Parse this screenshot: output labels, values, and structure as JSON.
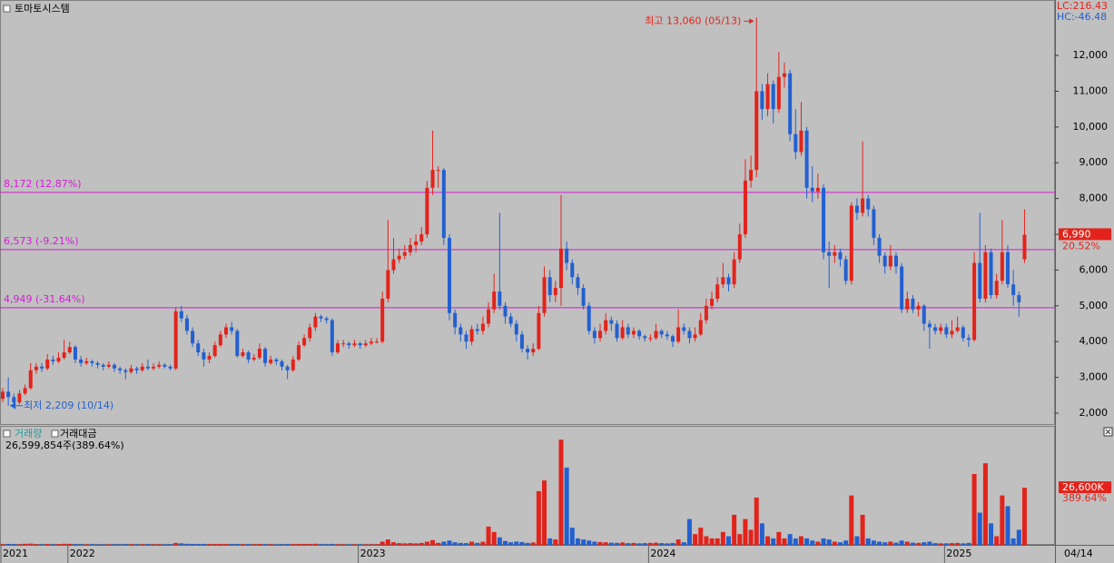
{
  "chart_data": {
    "type": "candlestick",
    "title": "토마토시스템",
    "lc_label": "LC:216.43",
    "hc_label": "HC:-46.48",
    "ylim": [
      1695,
      13550
    ],
    "yticks": [
      {
        "value": 2000,
        "label": "2,000"
      },
      {
        "value": 3000,
        "label": "3,000"
      },
      {
        "value": 4000,
        "label": "4,000"
      },
      {
        "value": 5000,
        "label": "5,000"
      },
      {
        "value": 6000,
        "label": "6,000"
      },
      {
        "value": 7000,
        "label": "7,000"
      },
      {
        "value": 8000,
        "label": "8,000"
      },
      {
        "value": 9000,
        "label": "9,000"
      },
      {
        "value": 10000,
        "label": "10,000"
      },
      {
        "value": 11000,
        "label": "11,000"
      },
      {
        "value": 12000,
        "label": "12,000"
      }
    ],
    "levels": [
      {
        "value": 8172,
        "label": "8,172 (12.87%)"
      },
      {
        "value": 6573,
        "label": "6,573 (-9.21%)"
      },
      {
        "value": 4949,
        "label": "4,949 (-31.64%)"
      }
    ],
    "high_label": "최고 13,060 (05/13)",
    "low_label": "최저 2,209 (10/14)",
    "current_label": "6,990",
    "current_change": "20.52%",
    "up_color": "#e3231b",
    "down_color": "#2360d0",
    "level_color": "#d61ad6",
    "ohlc": [
      [
        2400,
        2700,
        2300,
        2600
      ],
      [
        2600,
        3000,
        2209,
        2450
      ],
      [
        2450,
        2550,
        2250,
        2300
      ],
      [
        2300,
        2650,
        2250,
        2550
      ],
      [
        2550,
        2800,
        2500,
        2700
      ],
      [
        2700,
        3400,
        2650,
        3200
      ],
      [
        3200,
        3400,
        3100,
        3300
      ],
      [
        3300,
        3400,
        3150,
        3250
      ],
      [
        3250,
        3650,
        3200,
        3500
      ],
      [
        3500,
        3600,
        3350,
        3450
      ],
      [
        3450,
        3700,
        3400,
        3550
      ],
      [
        3550,
        4050,
        3500,
        3700
      ],
      [
        3700,
        4000,
        3650,
        3850
      ],
      [
        3850,
        3900,
        3400,
        3500
      ],
      [
        3500,
        3600,
        3300,
        3400
      ],
      [
        3400,
        3550,
        3350,
        3450
      ],
      [
        3450,
        3500,
        3300,
        3400
      ],
      [
        3400,
        3450,
        3250,
        3350
      ],
      [
        3350,
        3400,
        3200,
        3300
      ],
      [
        3300,
        3450,
        3250,
        3350
      ],
      [
        3350,
        3400,
        3150,
        3250
      ],
      [
        3250,
        3300,
        3100,
        3200
      ],
      [
        3200,
        3250,
        2950,
        3150
      ],
      [
        3150,
        3350,
        3100,
        3250
      ],
      [
        3250,
        3300,
        3100,
        3200
      ],
      [
        3200,
        3400,
        3150,
        3300
      ],
      [
        3300,
        3500,
        3200,
        3250
      ],
      [
        3250,
        3400,
        3200,
        3300
      ],
      [
        3300,
        3450,
        3250,
        3350
      ],
      [
        3350,
        3400,
        3250,
        3300
      ],
      [
        3300,
        3350,
        3200,
        3250
      ],
      [
        3250,
        4950,
        3200,
        4850
      ],
      [
        4850,
        5000,
        4550,
        4650
      ],
      [
        4650,
        4750,
        4200,
        4300
      ],
      [
        4300,
        4400,
        3850,
        3950
      ],
      [
        3950,
        4050,
        3600,
        3700
      ],
      [
        3700,
        3800,
        3300,
        3500
      ],
      [
        3500,
        3700,
        3400,
        3600
      ],
      [
        3600,
        4000,
        3550,
        3900
      ],
      [
        3900,
        4300,
        3850,
        4200
      ],
      [
        4200,
        4500,
        4100,
        4400
      ],
      [
        4400,
        4550,
        4200,
        4300
      ],
      [
        4300,
        4350,
        3550,
        3600
      ],
      [
        3600,
        3800,
        3550,
        3700
      ],
      [
        3700,
        3750,
        3400,
        3500
      ],
      [
        3500,
        3650,
        3450,
        3550
      ],
      [
        3550,
        3950,
        3500,
        3800
      ],
      [
        3800,
        3850,
        3300,
        3400
      ],
      [
        3400,
        3600,
        3350,
        3500
      ],
      [
        3500,
        3550,
        3350,
        3450
      ],
      [
        3450,
        3500,
        3200,
        3300
      ],
      [
        3300,
        3350,
        2950,
        3200
      ],
      [
        3200,
        3600,
        3150,
        3500
      ],
      [
        3500,
        4000,
        3450,
        3900
      ],
      [
        3900,
        4200,
        3850,
        4100
      ],
      [
        4100,
        4500,
        4000,
        4400
      ],
      [
        4400,
        4800,
        4300,
        4700
      ],
      [
        4700,
        4750,
        4550,
        4650
      ],
      [
        4650,
        4700,
        4500,
        4600
      ],
      [
        4600,
        4650,
        3600,
        3700
      ],
      [
        3700,
        4050,
        3650,
        3950
      ],
      [
        3950,
        4050,
        3850,
        3950
      ],
      [
        3950,
        4000,
        3800,
        3900
      ],
      [
        3900,
        4050,
        3850,
        3950
      ],
      [
        3950,
        4000,
        3800,
        3900
      ],
      [
        3900,
        4050,
        3850,
        3950
      ],
      [
        3950,
        4100,
        3900,
        4000
      ],
      [
        4000,
        4100,
        3950,
        4000
      ],
      [
        4000,
        5400,
        3950,
        5200
      ],
      [
        5200,
        7400,
        5100,
        6000
      ],
      [
        6000,
        6900,
        5900,
        6300
      ],
      [
        6300,
        6600,
        6200,
        6400
      ],
      [
        6400,
        6700,
        6300,
        6500
      ],
      [
        6500,
        6900,
        6400,
        6700
      ],
      [
        6700,
        7000,
        6500,
        6800
      ],
      [
        6800,
        7200,
        6700,
        7000
      ],
      [
        7000,
        8500,
        6900,
        8300
      ],
      [
        8300,
        9900,
        8100,
        8800
      ],
      [
        8800,
        8900,
        8300,
        8800
      ],
      [
        8800,
        8850,
        6700,
        6900
      ],
      [
        6900,
        7000,
        4600,
        4800
      ],
      [
        4800,
        4900,
        4200,
        4400
      ],
      [
        4400,
        4500,
        4000,
        4200
      ],
      [
        4200,
        4300,
        3800,
        4000
      ],
      [
        4000,
        4450,
        3900,
        4350
      ],
      [
        4350,
        4500,
        4200,
        4300
      ],
      [
        4300,
        4700,
        4200,
        4500
      ],
      [
        4500,
        5100,
        4400,
        4900
      ],
      [
        4900,
        5900,
        4800,
        5400
      ],
      [
        5400,
        7600,
        4900,
        5000
      ],
      [
        5000,
        5100,
        4500,
        4700
      ],
      [
        4700,
        4800,
        4400,
        4500
      ],
      [
        4500,
        4600,
        4000,
        4200
      ],
      [
        4200,
        4300,
        3700,
        3800
      ],
      [
        3800,
        3900,
        3500,
        3700
      ],
      [
        3700,
        3950,
        3600,
        3800
      ],
      [
        3800,
        5000,
        3750,
        4800
      ],
      [
        4800,
        6100,
        4700,
        5800
      ],
      [
        5800,
        6000,
        5100,
        5300
      ],
      [
        5300,
        5700,
        5100,
        5500
      ],
      [
        5500,
        8100,
        5000,
        6600
      ],
      [
        6600,
        6800,
        6000,
        6200
      ],
      [
        6200,
        6300,
        5600,
        5800
      ],
      [
        5800,
        5900,
        5300,
        5500
      ],
      [
        5500,
        5600,
        4900,
        5000
      ],
      [
        5000,
        5100,
        4200,
        4300
      ],
      [
        4300,
        4400,
        3950,
        4100
      ],
      [
        4100,
        4500,
        4000,
        4300
      ],
      [
        4300,
        4800,
        4200,
        4600
      ],
      [
        4600,
        4700,
        4300,
        4500
      ],
      [
        4500,
        4600,
        4000,
        4100
      ],
      [
        4100,
        4600,
        4050,
        4400
      ],
      [
        4400,
        4500,
        4100,
        4200
      ],
      [
        4200,
        4400,
        4100,
        4300
      ],
      [
        4300,
        4350,
        4050,
        4150
      ],
      [
        4150,
        4200,
        4000,
        4100
      ],
      [
        4100,
        4200,
        4000,
        4100
      ],
      [
        4100,
        4500,
        4050,
        4300
      ],
      [
        4300,
        4350,
        4100,
        4200
      ],
      [
        4200,
        4300,
        4050,
        4150
      ],
      [
        4150,
        4200,
        3850,
        4000
      ],
      [
        4000,
        4900,
        3950,
        4400
      ],
      [
        4400,
        4500,
        4200,
        4300
      ],
      [
        4300,
        4400,
        3950,
        4100
      ],
      [
        4100,
        4400,
        4000,
        4200
      ],
      [
        4200,
        4800,
        4150,
        4600
      ],
      [
        4600,
        5200,
        4500,
        5000
      ],
      [
        5000,
        5400,
        4900,
        5200
      ],
      [
        5200,
        5800,
        5100,
        5600
      ],
      [
        5600,
        6200,
        5500,
        5800
      ],
      [
        5800,
        5900,
        5400,
        5600
      ],
      [
        5600,
        6500,
        5500,
        6300
      ],
      [
        6300,
        7300,
        6200,
        7000
      ],
      [
        7000,
        9100,
        6900,
        8500
      ],
      [
        8500,
        9200,
        8300,
        8800
      ],
      [
        8800,
        13060,
        8600,
        11000
      ],
      [
        11000,
        11200,
        10200,
        10500
      ],
      [
        10500,
        11500,
        10300,
        11200
      ],
      [
        11200,
        11300,
        10100,
        10500
      ],
      [
        10500,
        12100,
        10400,
        11400
      ],
      [
        11400,
        11800,
        11100,
        11500
      ],
      [
        11500,
        11600,
        9600,
        9800
      ],
      [
        9800,
        10500,
        9100,
        9300
      ],
      [
        9300,
        10700,
        9200,
        9900
      ],
      [
        9900,
        10000,
        8000,
        8300
      ],
      [
        8300,
        8900,
        7900,
        8200
      ],
      [
        8200,
        8700,
        8000,
        8300
      ],
      [
        8300,
        8400,
        6300,
        6500
      ],
      [
        6500,
        6800,
        5500,
        6400
      ],
      [
        6400,
        6700,
        6200,
        6500
      ],
      [
        6500,
        6600,
        6100,
        6300
      ],
      [
        6300,
        6400,
        5600,
        5700
      ],
      [
        5700,
        7900,
        5600,
        7800
      ],
      [
        7800,
        8000,
        7400,
        7600
      ],
      [
        7600,
        9600,
        7500,
        8000
      ],
      [
        8000,
        8100,
        7500,
        7700
      ],
      [
        7700,
        7800,
        6700,
        6900
      ],
      [
        6900,
        7000,
        6200,
        6400
      ],
      [
        6400,
        6500,
        5900,
        6100
      ],
      [
        6100,
        6700,
        6000,
        6400
      ],
      [
        6400,
        6500,
        5900,
        6100
      ],
      [
        6100,
        6200,
        4800,
        4900
      ],
      [
        4900,
        5400,
        4800,
        5200
      ],
      [
        5200,
        5300,
        4800,
        4900
      ],
      [
        4900,
        5100,
        4700,
        5000
      ],
      [
        5000,
        5050,
        4300,
        4500
      ],
      [
        4500,
        4600,
        3800,
        4400
      ],
      [
        4400,
        4500,
        4200,
        4300
      ],
      [
        4300,
        4500,
        4200,
        4400
      ],
      [
        4400,
        4500,
        4100,
        4200
      ],
      [
        4200,
        4600,
        4100,
        4300
      ],
      [
        4300,
        4700,
        4250,
        4400
      ],
      [
        4400,
        4450,
        4000,
        4100
      ],
      [
        4100,
        4200,
        3850,
        4050
      ],
      [
        4050,
        6500,
        4000,
        6200
      ],
      [
        6200,
        7600,
        5100,
        5200
      ],
      [
        5200,
        6700,
        5100,
        6500
      ],
      [
        6500,
        6600,
        5200,
        5300
      ],
      [
        5300,
        5900,
        5200,
        5700
      ],
      [
        5700,
        7400,
        5600,
        6500
      ],
      [
        6500,
        6700,
        5500,
        5600
      ],
      [
        5600,
        6000,
        5000,
        5300
      ],
      [
        5300,
        5400,
        4700,
        5100
      ],
      [
        6300,
        7700,
        6200,
        6990
      ]
    ],
    "volume_title": "거래량",
    "amount_title": "거래대금",
    "volume_info": "26,599,854주(389.64%)",
    "volume_box_label": "26,600K",
    "volume_change": "389.64%",
    "volume_ylim": [
      0,
      55000000
    ],
    "volume": [
      300000,
      400000,
      350000,
      300000,
      500000,
      600000,
      300000,
      250000,
      400000,
      300000,
      350000,
      500000,
      450000,
      350000,
      300000,
      250000,
      300000,
      250000,
      200000,
      250000,
      300000,
      250000,
      350000,
      300000,
      250000,
      300000,
      350000,
      250000,
      300000,
      250000,
      300000,
      900000,
      700000,
      500000,
      450000,
      400000,
      450000,
      350000,
      400000,
      450000,
      400000,
      350000,
      450000,
      300000,
      350000,
      300000,
      400000,
      350000,
      300000,
      250000,
      300000,
      400000,
      350000,
      450000,
      400000,
      450000,
      500000,
      350000,
      300000,
      450000,
      300000,
      250000,
      250000,
      250000,
      250000,
      250000,
      250000,
      300000,
      1500000,
      2500000,
      1200000,
      800000,
      700000,
      800000,
      700000,
      900000,
      1500000,
      2200000,
      900000,
      1500000,
      2000000,
      1200000,
      900000,
      800000,
      1500000,
      900000,
      1400000,
      8500000,
      6000000,
      3500000,
      1800000,
      1200000,
      1500000,
      1300000,
      900000,
      1100000,
      25000000,
      30000000,
      3000000,
      2500000,
      49000000,
      36000000,
      8000000,
      3000000,
      2500000,
      2000000,
      1500000,
      1300000,
      1200000,
      1000000,
      900000,
      1100000,
      800000,
      900000,
      700000,
      800000,
      900000,
      1000000,
      800000,
      700000,
      900000,
      2500000,
      1200000,
      12000000,
      5000000,
      8000000,
      4000000,
      3000000,
      3000000,
      6000000,
      4000000,
      14000000,
      5000000,
      12000000,
      7000000,
      22000000,
      10000000,
      4000000,
      3000000,
      6000000,
      3000000,
      5000000,
      3000000,
      4000000,
      3000000,
      2000000,
      1500000,
      3000000,
      2500000,
      1500000,
      1200000,
      2000000,
      23000000,
      4000000,
      14000000,
      3000000,
      2000000,
      1500000,
      1200000,
      1500000,
      1000000,
      2000000,
      1500000,
      1000000,
      900000,
      1200000,
      1500000,
      800000,
      700000,
      700000,
      800000,
      900000,
      700000,
      900000,
      33000000,
      15000000,
      38000000,
      10000000,
      4000000,
      23000000,
      18000000,
      3000000,
      7000000,
      26599854
    ],
    "x_labels": [
      {
        "label": "2021",
        "index": 0
      },
      {
        "label": "2022",
        "index": 12
      },
      {
        "label": "2023",
        "index": 64
      },
      {
        "label": "2024",
        "index": 116
      },
      {
        "label": "2025",
        "index": 169
      }
    ],
    "last_date": "04/14"
  }
}
